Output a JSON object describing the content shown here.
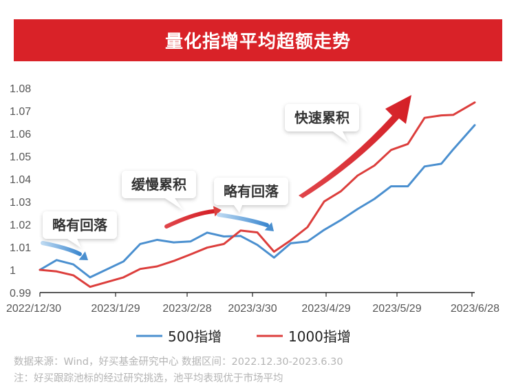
{
  "title": "量化指增平均超额走势",
  "chart_data": {
    "type": "line",
    "x_ticks": [
      "2022/12/30",
      "2023/1/29",
      "2023/2/28",
      "2023/3/30",
      "2023/4/29",
      "2023/5/29",
      "2023/6/28"
    ],
    "y_ticks": [
      "0.99",
      "1",
      "1.01",
      "1.02",
      "1.03",
      "1.04",
      "1.05",
      "1.06",
      "1.07",
      "1.08"
    ],
    "ylim": [
      0.99,
      1.08
    ],
    "xlim": [
      "2022-12-30",
      "2023-06-30"
    ],
    "grid": false,
    "legend_position": "bottom",
    "series": [
      {
        "name": "500指增",
        "color": "#4a8fcf",
        "points": [
          [
            "2022-12-30",
            1.0
          ],
          [
            "2023-01-06",
            1.0043
          ],
          [
            "2023-01-13",
            1.0024
          ],
          [
            "2023-01-20",
            0.9967
          ],
          [
            "2023-02-03",
            1.0037
          ],
          [
            "2023-02-10",
            1.0114
          ],
          [
            "2023-02-17",
            1.0132
          ],
          [
            "2023-02-24",
            1.0121
          ],
          [
            "2023-03-03",
            1.0125
          ],
          [
            "2023-03-10",
            1.0164
          ],
          [
            "2023-03-17",
            1.0147
          ],
          [
            "2023-03-24",
            1.0149
          ],
          [
            "2023-03-31",
            1.011
          ],
          [
            "2023-04-07",
            1.0054
          ],
          [
            "2023-04-14",
            1.0117
          ],
          [
            "2023-04-21",
            1.0125
          ],
          [
            "2023-04-28",
            1.0176
          ],
          [
            "2023-05-05",
            1.0219
          ],
          [
            "2023-05-12",
            1.0268
          ],
          [
            "2023-05-19",
            1.0312
          ],
          [
            "2023-05-26",
            1.0368
          ],
          [
            "2023-06-02",
            1.0368
          ],
          [
            "2023-06-09",
            1.0455
          ],
          [
            "2023-06-16",
            1.0467
          ],
          [
            "2023-06-21",
            1.053
          ],
          [
            "2023-06-30",
            1.0637
          ]
        ]
      },
      {
        "name": "1000指增",
        "color": "#dc3e3c",
        "points": [
          [
            "2022-12-30",
            1.0
          ],
          [
            "2023-01-06",
            0.9993
          ],
          [
            "2023-01-13",
            0.9976
          ],
          [
            "2023-01-20",
            0.9925
          ],
          [
            "2023-02-03",
            0.9967
          ],
          [
            "2023-02-10",
            1.0004
          ],
          [
            "2023-02-17",
            1.0015
          ],
          [
            "2023-02-24",
            1.0039
          ],
          [
            "2023-03-03",
            1.0068
          ],
          [
            "2023-03-10",
            1.0098
          ],
          [
            "2023-03-17",
            1.0114
          ],
          [
            "2023-03-24",
            1.0173
          ],
          [
            "2023-03-31",
            1.0165
          ],
          [
            "2023-04-07",
            1.008
          ],
          [
            "2023-04-14",
            1.013
          ],
          [
            "2023-04-21",
            1.0188
          ],
          [
            "2023-04-28",
            1.0301
          ],
          [
            "2023-05-05",
            1.0346
          ],
          [
            "2023-05-12",
            1.0415
          ],
          [
            "2023-05-19",
            1.0459
          ],
          [
            "2023-05-26",
            1.0528
          ],
          [
            "2023-06-02",
            1.0554
          ],
          [
            "2023-06-09",
            1.0669
          ],
          [
            "2023-06-16",
            1.068
          ],
          [
            "2023-06-21",
            1.0682
          ],
          [
            "2023-06-30",
            1.0737
          ]
        ]
      }
    ],
    "annotations": [
      {
        "text": "略有回落",
        "arrow": "blue"
      },
      {
        "text": "缓慢累积",
        "arrow": "red"
      },
      {
        "text": "略有回落",
        "arrow": "blue"
      },
      {
        "text": "快速累积",
        "arrow": "red"
      }
    ]
  },
  "footnotes": {
    "source": "数据来源：Wind，好买基金研究中心  数据区间：2022.12.30-2023.6.30",
    "note": "注：好买跟踪池标的经过研究挑选，池平均表现优于市场平均"
  }
}
